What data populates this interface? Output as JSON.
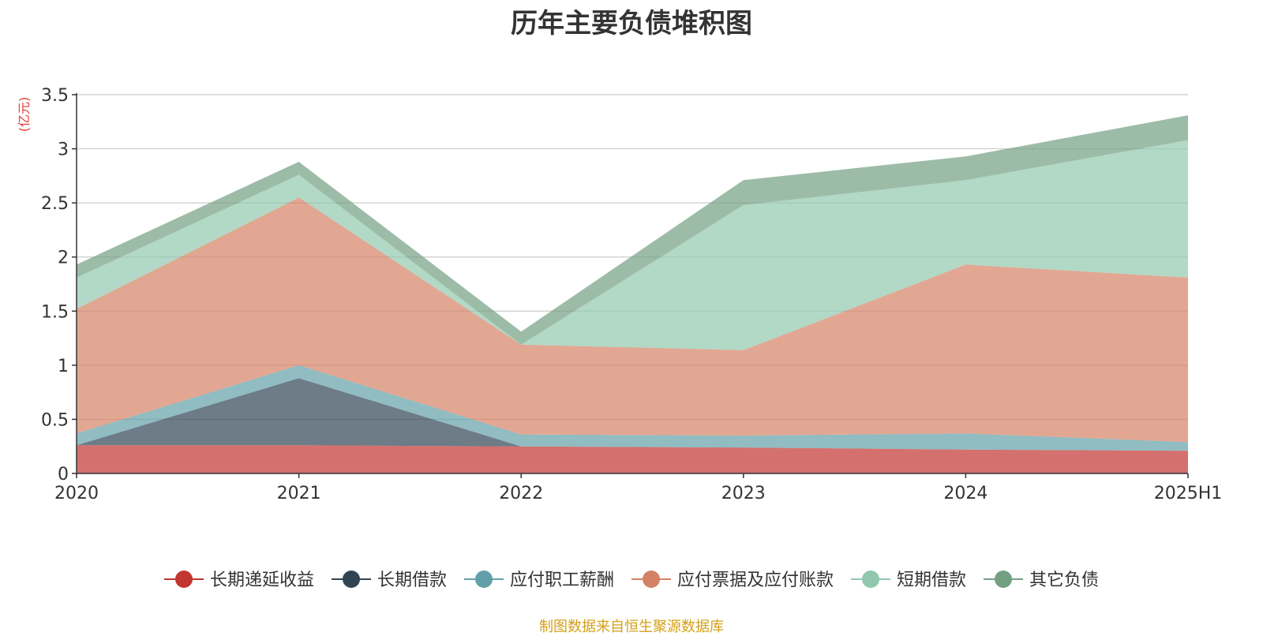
{
  "chart_data": {
    "type": "area",
    "stacked": true,
    "title": "历年主要负债堆积图",
    "unit_label": "(亿元)",
    "x": [
      "2020",
      "2021",
      "2022",
      "2023",
      "2024",
      "2025H1"
    ],
    "y_ticks": [
      "0",
      "0.5",
      "1",
      "1.5",
      "2",
      "2.5",
      "3",
      "3.5"
    ],
    "ylim": [
      0,
      3.5
    ],
    "grid": true,
    "legend_position": "bottom",
    "series": [
      {
        "name": "长期递延收益",
        "color": "#c23531",
        "values": [
          0.26,
          0.26,
          0.25,
          0.24,
          0.22,
          0.21
        ]
      },
      {
        "name": "长期借款",
        "color": "#2f4554",
        "values": [
          0.0,
          0.62,
          0.0,
          0.0,
          0.0,
          0.0
        ]
      },
      {
        "name": "应付职工薪酬",
        "color": "#61a0a8",
        "values": [
          0.11,
          0.12,
          0.11,
          0.11,
          0.15,
          0.08
        ]
      },
      {
        "name": "应付票据及应付账款",
        "color": "#d48265",
        "values": [
          1.15,
          1.55,
          0.83,
          0.79,
          1.56,
          1.52
        ]
      },
      {
        "name": "短期借款",
        "color": "#91c7ae",
        "values": [
          0.29,
          0.21,
          0.0,
          1.34,
          0.78,
          1.27
        ]
      },
      {
        "name": "其它负债",
        "color": "#749f83",
        "values": [
          0.12,
          0.12,
          0.12,
          0.23,
          0.22,
          0.23
        ]
      }
    ]
  },
  "footer": {
    "source": "制图数据来自恒生聚源数据库"
  }
}
